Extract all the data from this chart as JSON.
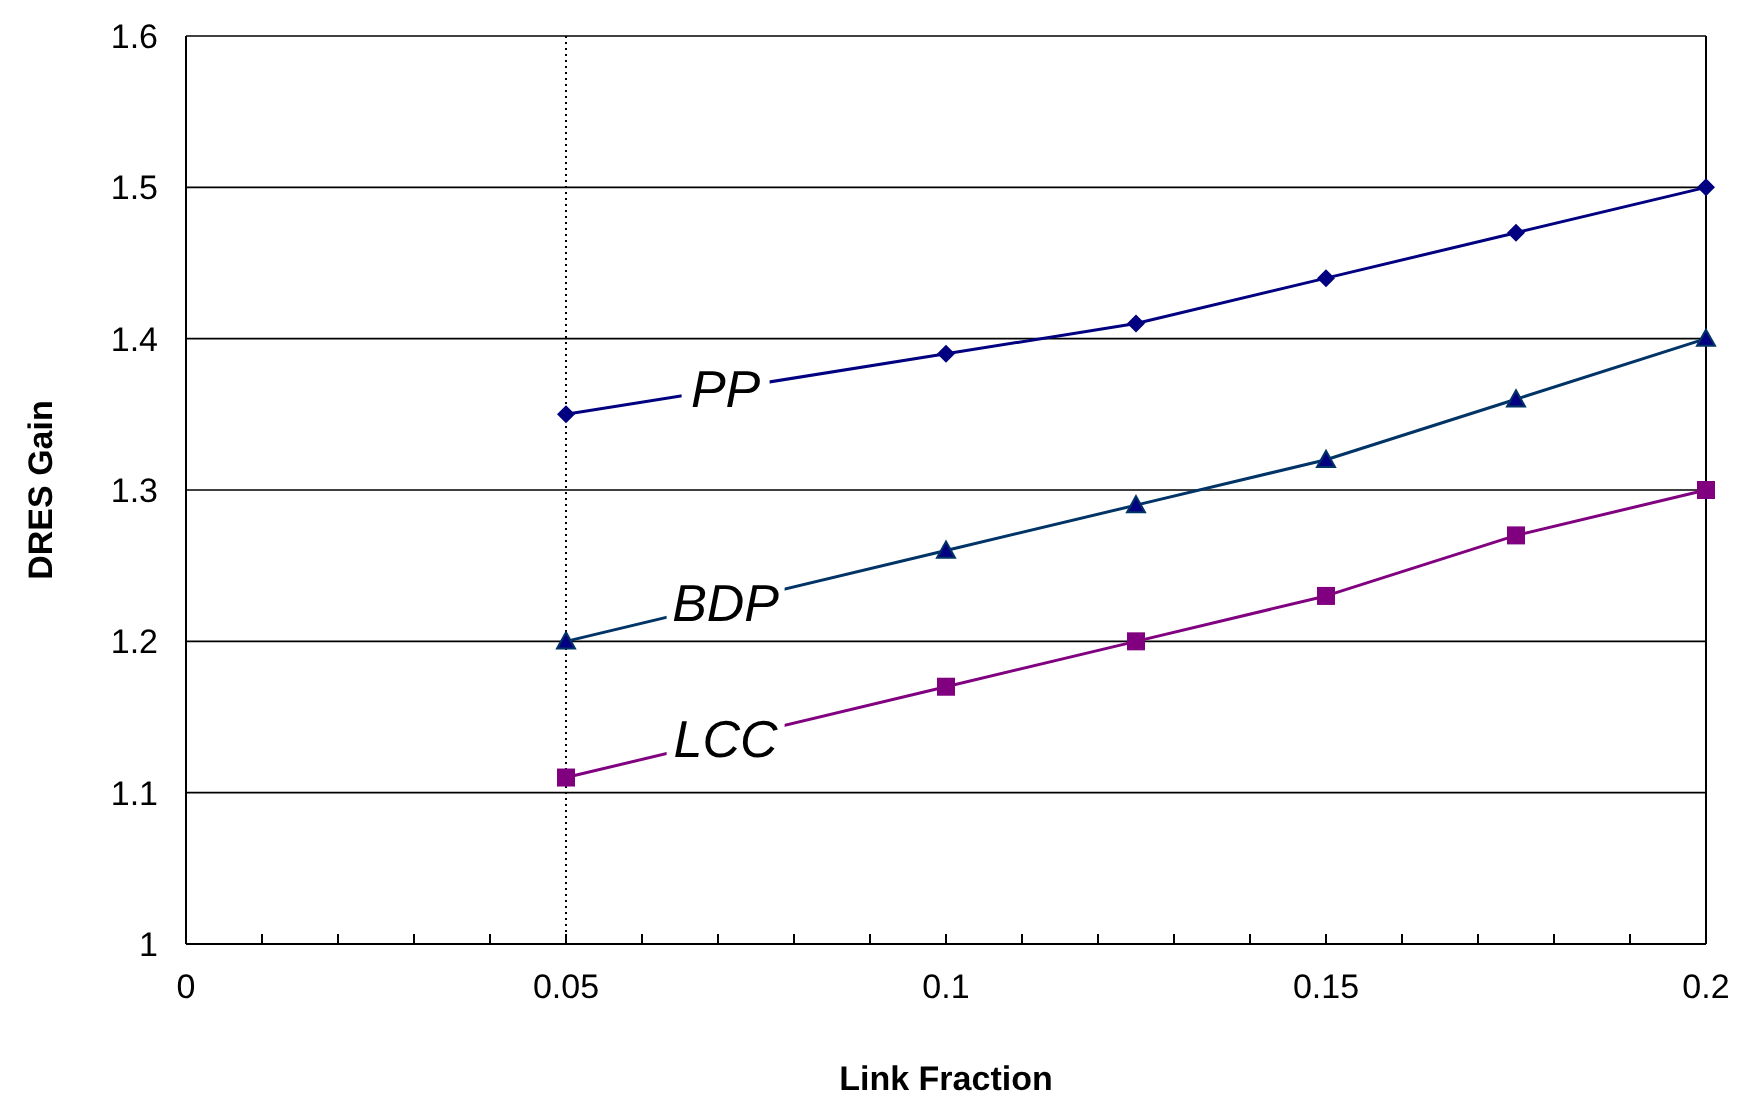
{
  "chart_data": {
    "type": "line",
    "xlabel": "Link Fraction",
    "ylabel": "DRES Gain",
    "x": [
      0.05,
      0.1,
      0.125,
      0.15,
      0.175,
      0.2
    ],
    "series": [
      {
        "name": "PP",
        "color": "#000080",
        "marker": "diamond",
        "values": [
          1.35,
          1.39,
          1.41,
          1.44,
          1.47,
          1.5
        ]
      },
      {
        "name": "BDP",
        "color": "#003366",
        "marker": "triangle",
        "values": [
          1.2,
          1.26,
          1.29,
          1.32,
          1.36,
          1.4
        ]
      },
      {
        "name": "LCC",
        "color": "#800080",
        "marker": "square",
        "values": [
          1.11,
          1.17,
          1.2,
          1.23,
          1.27,
          1.3
        ]
      }
    ],
    "xlim": [
      0,
      0.2
    ],
    "xticks": [
      0,
      {
        "value": 0.01,
        "label": null
      },
      {
        "value": 0.02,
        "label": null
      },
      {
        "value": 0.03,
        "label": null
      },
      {
        "value": 0.04,
        "label": null
      },
      0.05,
      {
        "value": 0.06,
        "label": null
      },
      {
        "value": 0.07,
        "label": null
      },
      {
        "value": 0.08,
        "label": null
      },
      {
        "value": 0.09,
        "label": null
      },
      0.1,
      {
        "value": 0.11,
        "label": null
      },
      {
        "value": 0.12,
        "label": null
      },
      {
        "value": 0.13,
        "label": null
      },
      {
        "value": 0.14,
        "label": null
      },
      0.15,
      {
        "value": 0.16,
        "label": null
      },
      {
        "value": 0.17,
        "label": null
      },
      {
        "value": 0.18,
        "label": null
      },
      {
        "value": 0.19,
        "label": null
      },
      0.2
    ],
    "ylim": [
      1,
      1.6
    ],
    "yticks": [
      1,
      1.1,
      1.2,
      1.3,
      1.4,
      1.5,
      1.6
    ],
    "grid": "y",
    "ref_lines": [
      {
        "axis": "x",
        "value": 0.05,
        "line_style": "dotted",
        "color": "#000000"
      }
    ]
  }
}
